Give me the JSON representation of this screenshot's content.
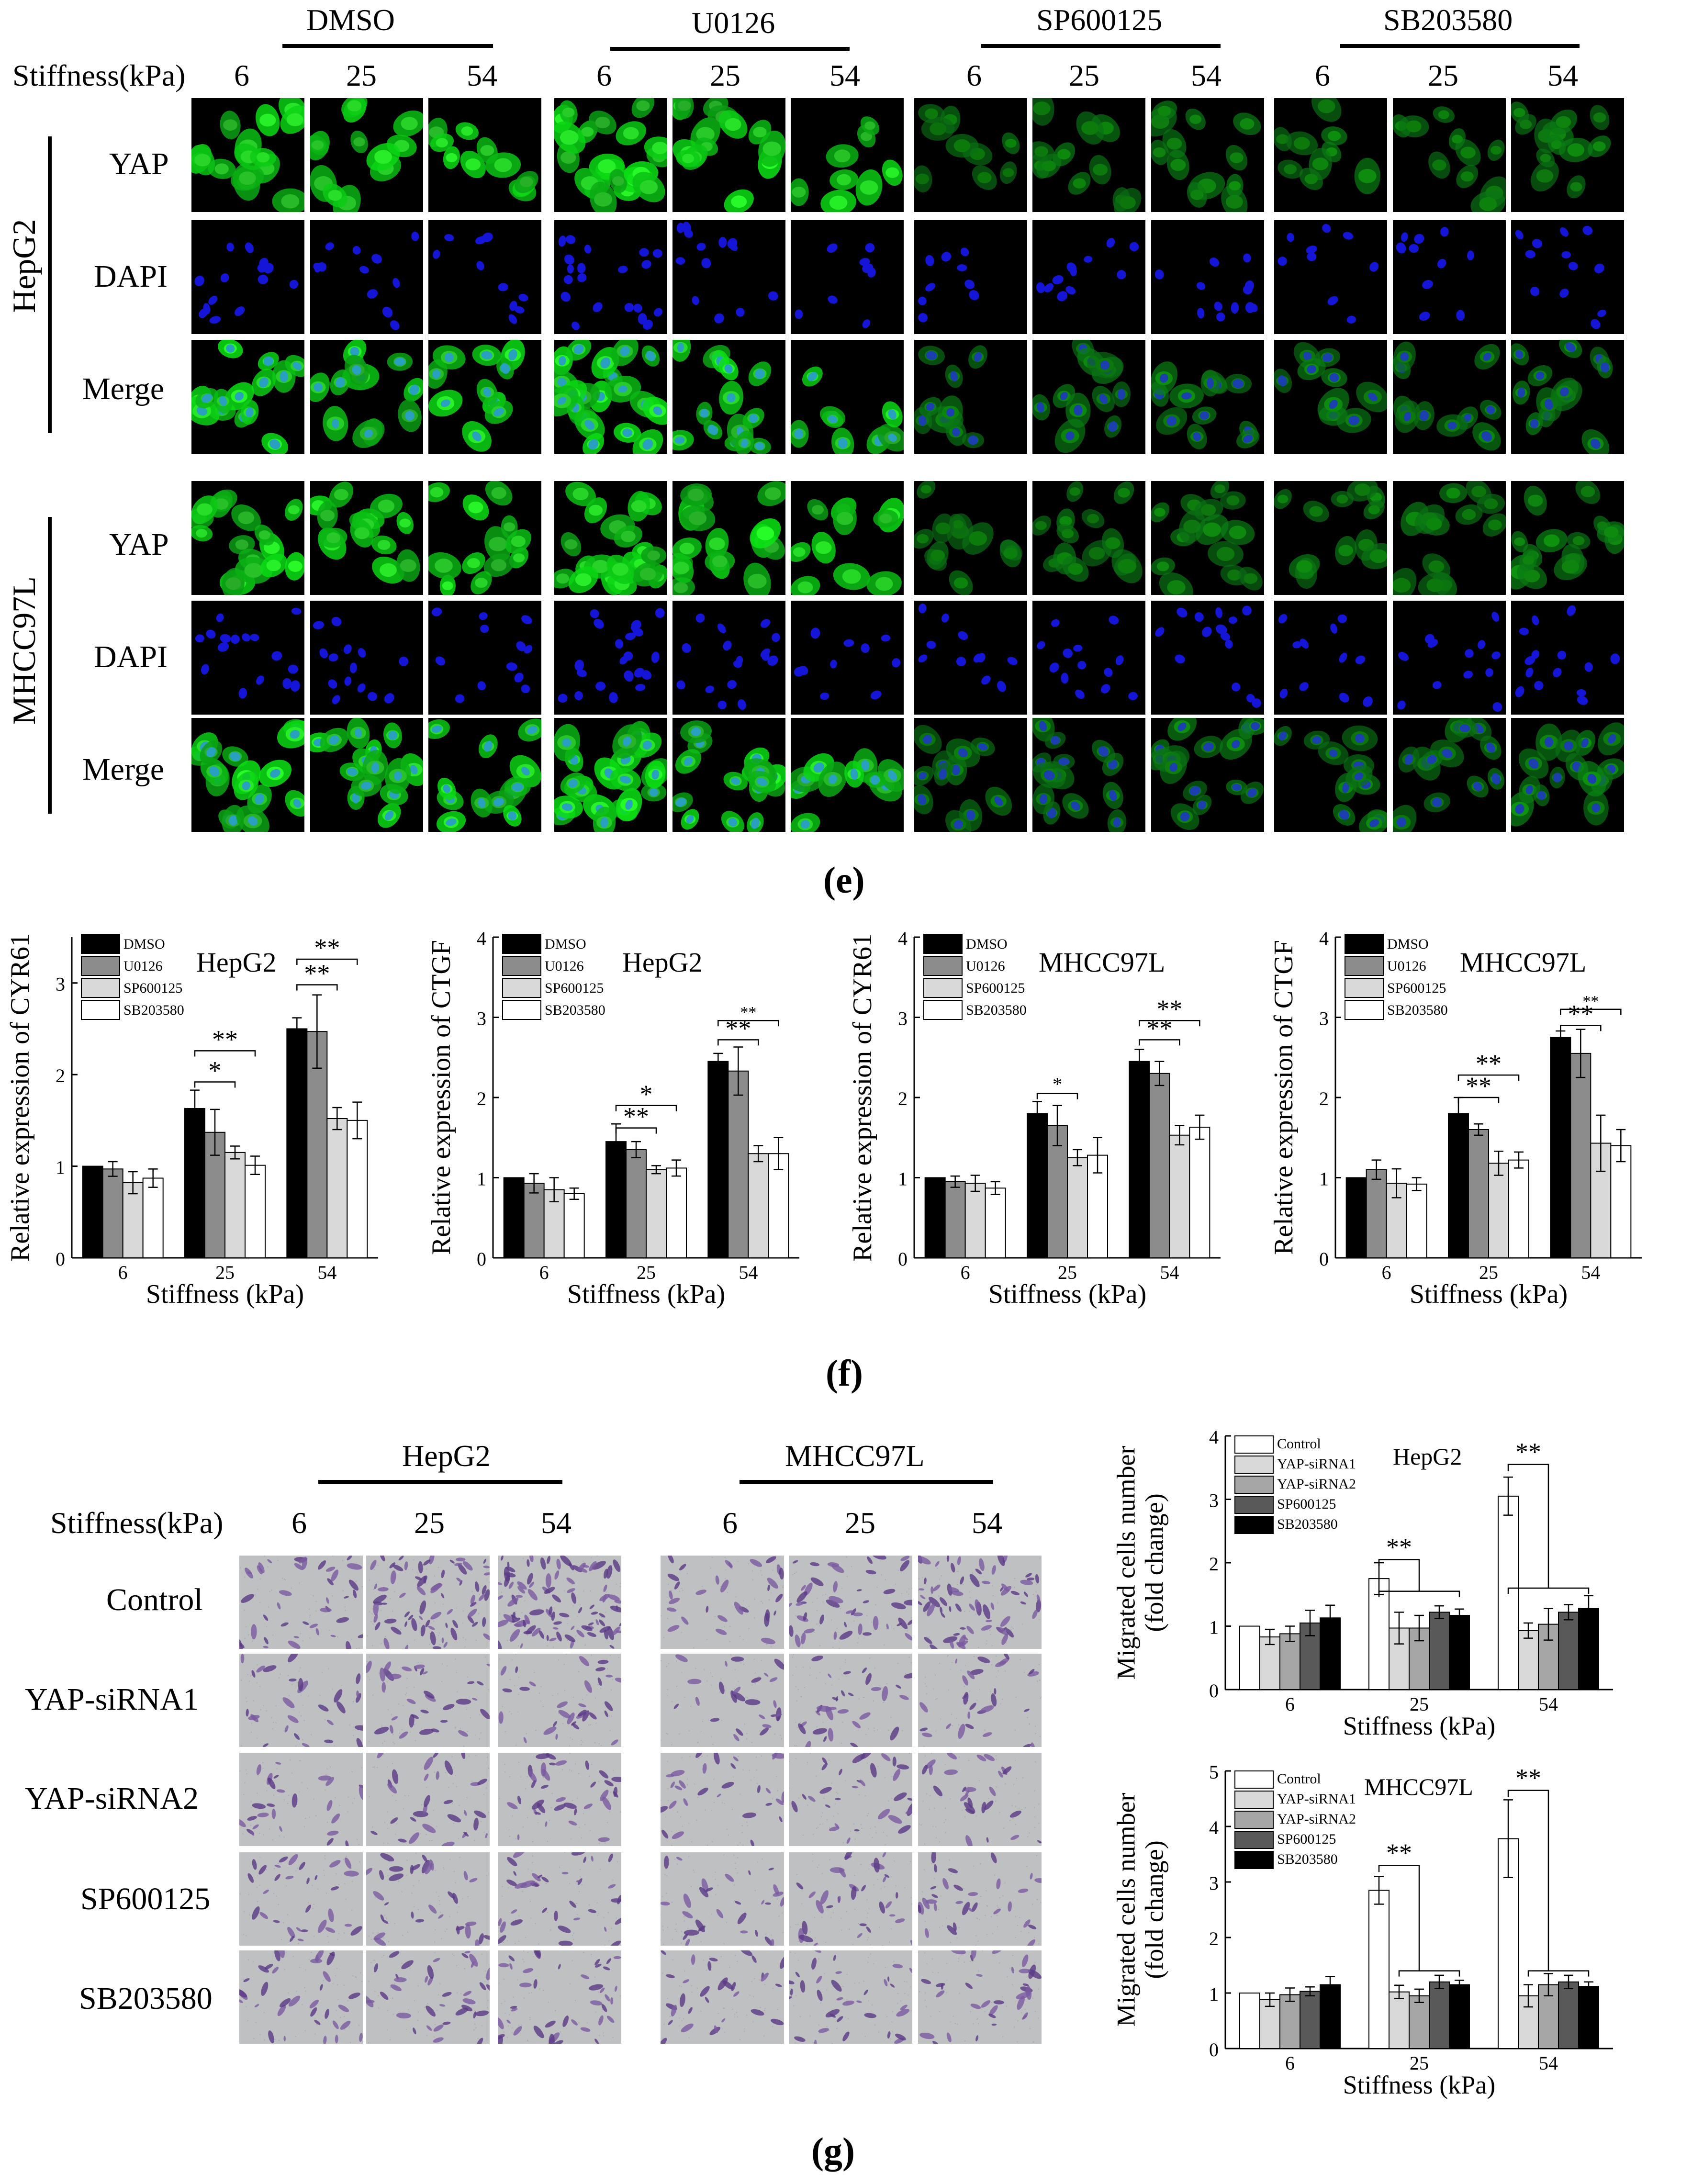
{
  "panel_e": {
    "treatments": [
      "DMSO",
      "U0126",
      "SP600125",
      "SB203580"
    ],
    "stiffness_label": "Stiffness(kPa)",
    "stiffness_values": [
      "6",
      "25",
      "54"
    ],
    "cell_lines": [
      "HepG2",
      "MHCC97L"
    ],
    "stains": [
      "YAP",
      "DAPI",
      "Merge"
    ],
    "label": "(e)"
  },
  "panel_f": {
    "label": "(f)",
    "legend": [
      "DMSO",
      "U0126",
      "SP600125",
      "SB203580"
    ],
    "colors": [
      "#000000",
      "#8c8c8c",
      "#d9d9d9",
      "#ffffff"
    ]
  },
  "panel_g": {
    "label": "(g)",
    "stiffness_label": "Stiffness(kPa)",
    "stiffness_values": [
      "6",
      "25",
      "54"
    ],
    "cell_lines": [
      "HepG2",
      "MHCC97L"
    ],
    "rows": [
      "Control",
      "YAP-siRNA1",
      "YAP-siRNA2",
      "SP600125",
      "SB203580"
    ],
    "legend": [
      "Control",
      "YAP-siRNA1",
      "YAP-siRNA2",
      "SP600125",
      "SB203580"
    ],
    "colors": [
      "#ffffff",
      "#d9d9d9",
      "#a6a6a6",
      "#595959",
      "#000000"
    ]
  },
  "chart_data": [
    {
      "type": "bar",
      "title": "HepG2",
      "ylabel": "Relative expression of CYR61",
      "xlabel": "Stiffness (kPa)",
      "ylim": [
        0,
        3.5
      ],
      "yticks": [
        0,
        1,
        2,
        3
      ],
      "categories": [
        "6",
        "25",
        "54"
      ],
      "series": [
        {
          "name": "DMSO",
          "values": [
            1.0,
            1.63,
            2.5
          ],
          "errors": [
            0.0,
            0.2,
            0.12
          ]
        },
        {
          "name": "U0126",
          "values": [
            0.97,
            1.37,
            2.47
          ],
          "errors": [
            0.08,
            0.25,
            0.4
          ]
        },
        {
          "name": "SP600125",
          "values": [
            0.82,
            1.15,
            1.52
          ],
          "errors": [
            0.12,
            0.07,
            0.12
          ]
        },
        {
          "name": "SB203580",
          "values": [
            0.87,
            1.01,
            1.5
          ],
          "errors": [
            0.1,
            0.1,
            0.2
          ]
        }
      ],
      "annotations": [
        "*",
        "**",
        "**",
        "**"
      ]
    },
    {
      "type": "bar",
      "title": "HepG2",
      "ylabel": "Relative expression of CTGF",
      "xlabel": "Stiffness (kPa)",
      "ylim": [
        0,
        4
      ],
      "yticks": [
        0,
        1,
        2,
        3,
        4
      ],
      "categories": [
        "6",
        "25",
        "54"
      ],
      "series": [
        {
          "name": "DMSO",
          "values": [
            1.0,
            1.45,
            2.45
          ],
          "errors": [
            0.0,
            0.22,
            0.1
          ]
        },
        {
          "name": "U0126",
          "values": [
            0.93,
            1.35,
            2.33
          ],
          "errors": [
            0.12,
            0.1,
            0.3
          ]
        },
        {
          "name": "SP600125",
          "values": [
            0.85,
            1.1,
            1.3
          ],
          "errors": [
            0.15,
            0.05,
            0.1
          ]
        },
        {
          "name": "SB203580",
          "values": [
            0.8,
            1.12,
            1.3
          ],
          "errors": [
            0.07,
            0.1,
            0.2
          ]
        }
      ],
      "annotations": [
        "**",
        "*",
        "**",
        "**"
      ]
    },
    {
      "type": "bar",
      "title": "MHCC97L",
      "ylabel": "Relative expression of CYR61",
      "xlabel": "Stiffness (kPa)",
      "ylim": [
        0,
        4
      ],
      "yticks": [
        0,
        1,
        2,
        3,
        4
      ],
      "categories": [
        "6",
        "25",
        "54"
      ],
      "series": [
        {
          "name": "DMSO",
          "values": [
            1.0,
            1.8,
            2.45
          ],
          "errors": [
            0.0,
            0.15,
            0.15
          ]
        },
        {
          "name": "U0126",
          "values": [
            0.95,
            1.65,
            2.3
          ],
          "errors": [
            0.07,
            0.25,
            0.15
          ]
        },
        {
          "name": "SP600125",
          "values": [
            0.93,
            1.25,
            1.53
          ],
          "errors": [
            0.1,
            0.1,
            0.12
          ]
        },
        {
          "name": "SB203580",
          "values": [
            0.87,
            1.28,
            1.63
          ],
          "errors": [
            0.08,
            0.22,
            0.15
          ]
        }
      ],
      "annotations": [
        "*",
        "**",
        "**"
      ]
    },
    {
      "type": "bar",
      "title": "MHCC97L",
      "ylabel": "Relative expression of CTGF",
      "xlabel": "Stiffness (kPa)",
      "ylim": [
        0,
        4
      ],
      "yticks": [
        0,
        1,
        2,
        3,
        4
      ],
      "categories": [
        "6",
        "25",
        "54"
      ],
      "series": [
        {
          "name": "DMSO",
          "values": [
            1.0,
            1.8,
            2.75
          ],
          "errors": [
            0.0,
            0.2,
            0.08
          ]
        },
        {
          "name": "U0126",
          "values": [
            1.1,
            1.6,
            2.55
          ],
          "errors": [
            0.12,
            0.07,
            0.3
          ]
        },
        {
          "name": "SP600125",
          "values": [
            0.93,
            1.18,
            1.43
          ],
          "errors": [
            0.18,
            0.15,
            0.35
          ]
        },
        {
          "name": "SB203580",
          "values": [
            0.92,
            1.22,
            1.4
          ],
          "errors": [
            0.08,
            0.1,
            0.2
          ]
        }
      ],
      "annotations": [
        "**",
        "**",
        "**",
        "**"
      ]
    },
    {
      "type": "bar",
      "title": "HepG2",
      "ylabel": "Migrated cells number (fold change)",
      "xlabel": "Stiffness (kPa)",
      "ylim": [
        0,
        4
      ],
      "yticks": [
        0,
        1,
        2,
        3,
        4
      ],
      "categories": [
        "6",
        "25",
        "54"
      ],
      "series": [
        {
          "name": "Control",
          "values": [
            1.0,
            1.75,
            3.05
          ],
          "errors": [
            0.0,
            0.25,
            0.3
          ]
        },
        {
          "name": "YAP-siRNA1",
          "values": [
            0.83,
            0.97,
            0.93
          ],
          "errors": [
            0.12,
            0.25,
            0.12
          ]
        },
        {
          "name": "YAP-siRNA2",
          "values": [
            0.88,
            0.97,
            1.03
          ],
          "errors": [
            0.12,
            0.2,
            0.25
          ]
        },
        {
          "name": "SP600125",
          "values": [
            1.05,
            1.22,
            1.22
          ],
          "errors": [
            0.2,
            0.1,
            0.12
          ]
        },
        {
          "name": "SB203580",
          "values": [
            1.13,
            1.17,
            1.28
          ],
          "errors": [
            0.2,
            0.1,
            0.2
          ]
        }
      ],
      "annotations": [
        "**",
        "**"
      ]
    },
    {
      "type": "bar",
      "title": "MHCC97L",
      "ylabel": "Migrated cells number (fold change)",
      "xlabel": "Stiffness (kPa)",
      "ylim": [
        0,
        5
      ],
      "yticks": [
        0,
        1,
        2,
        3,
        4,
        5
      ],
      "categories": [
        "6",
        "25",
        "54"
      ],
      "series": [
        {
          "name": "Control",
          "values": [
            1.0,
            2.85,
            3.78
          ],
          "errors": [
            0.0,
            0.25,
            0.7
          ]
        },
        {
          "name": "YAP-siRNA1",
          "values": [
            0.88,
            1.02,
            0.95
          ],
          "errors": [
            0.12,
            0.12,
            0.2
          ]
        },
        {
          "name": "YAP-siRNA2",
          "values": [
            0.97,
            0.95,
            1.15
          ],
          "errors": [
            0.12,
            0.12,
            0.2
          ]
        },
        {
          "name": "SP600125",
          "values": [
            1.03,
            1.2,
            1.2
          ],
          "errors": [
            0.08,
            0.12,
            0.12
          ]
        },
        {
          "name": "SB203580",
          "values": [
            1.15,
            1.15,
            1.12
          ],
          "errors": [
            0.15,
            0.08,
            0.08
          ]
        }
      ],
      "annotations": [
        "**",
        "**"
      ]
    }
  ]
}
